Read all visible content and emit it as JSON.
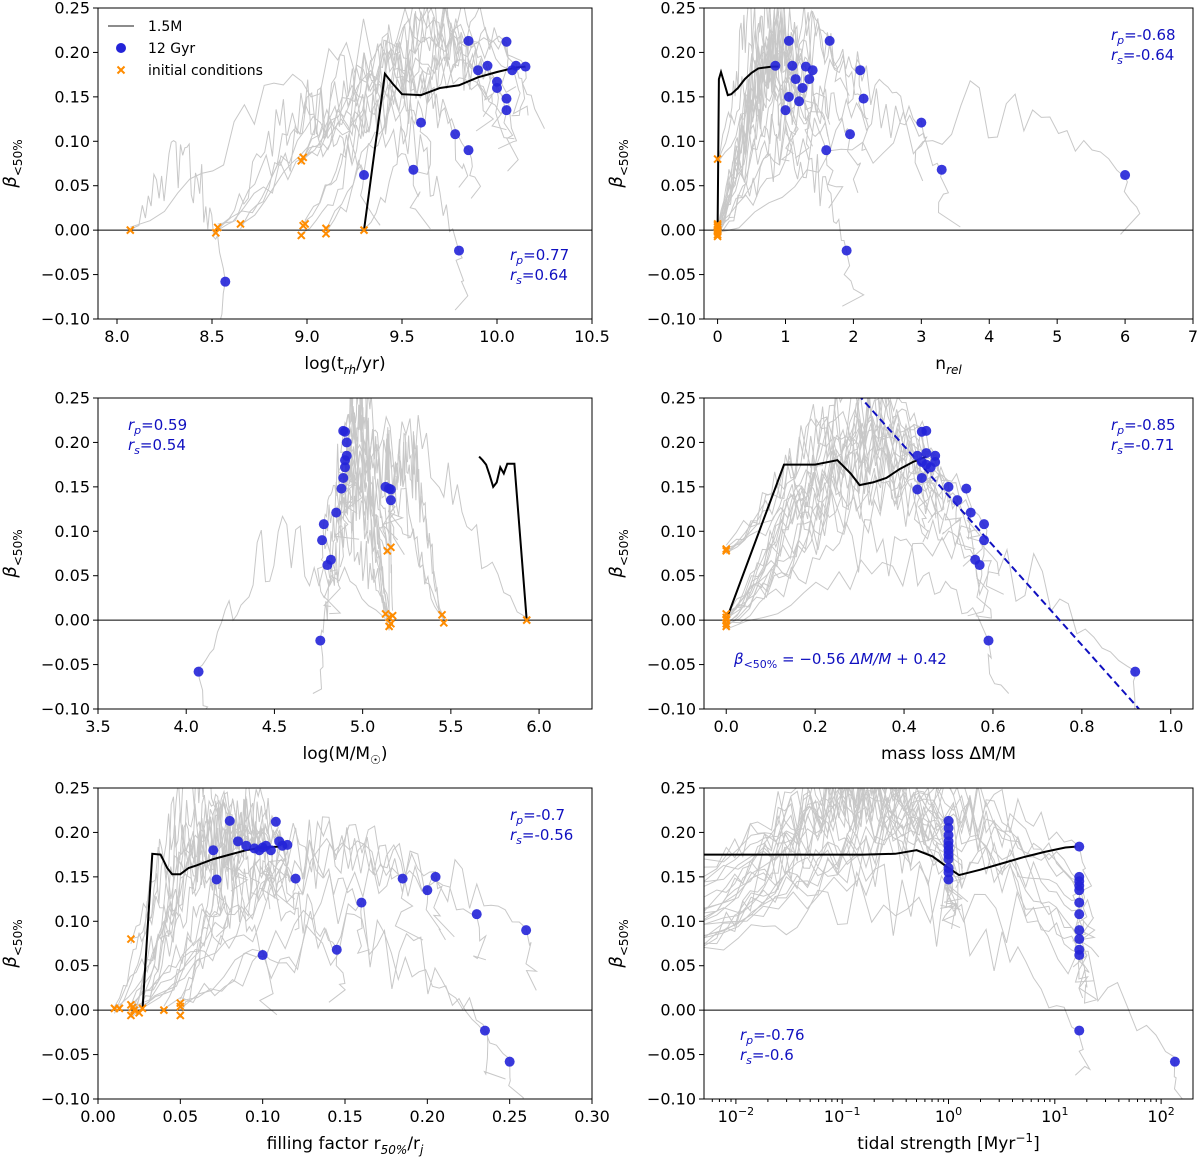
{
  "colors": {
    "track": "#c8c8c8",
    "highlight": "#000000",
    "endpoint": "#2323d8",
    "initial": "#ff8c00",
    "stat": "#1010c0",
    "zero_line": "#000000"
  },
  "legend": {
    "track_label": "1.5M",
    "endpoint_label": "12 Gyr",
    "initial_label": "initial conditions"
  },
  "ylabel": "β<50%",
  "ylabel_parts": {
    "base": "β",
    "sub": "<50%"
  },
  "chart_data": [
    {
      "id": "trh",
      "type": "scatter",
      "xlabel": "log(t_rh/yr)",
      "xlabel_parts": {
        "pre": "log(t",
        "sub": "rh",
        "post": "/yr)"
      },
      "ylabel": "β<50%",
      "xlim": [
        7.9,
        10.5
      ],
      "ylim": [
        -0.1,
        0.25
      ],
      "xscale": "linear",
      "xticks": [
        "8.0",
        "8.5",
        "9.0",
        "9.5",
        "10.0",
        "10.5"
      ],
      "xtick_values": [
        8.0,
        8.5,
        9.0,
        9.5,
        10.0,
        10.5
      ],
      "yticks": [
        "−0.10",
        "−0.05",
        "0.00",
        "0.05",
        "0.10",
        "0.15",
        "0.20",
        "0.25"
      ],
      "stats": {
        "rp": "0.77",
        "rs": "0.64",
        "position": "bottom-right"
      },
      "highlight_track": {
        "name": "1.5M",
        "x": [
          9.3,
          9.41,
          9.45,
          9.5,
          9.6,
          9.7,
          9.8,
          9.9,
          10.0,
          10.1,
          10.15
        ],
        "y": [
          0.0,
          0.176,
          0.165,
          0.153,
          0.152,
          0.16,
          0.163,
          0.172,
          0.178,
          0.183,
          0.184
        ]
      },
      "endpoints": {
        "x": [
          8.57,
          9.3,
          9.56,
          9.6,
          9.78,
          9.8,
          9.85,
          9.85,
          9.9,
          9.95,
          10.0,
          10.0,
          10.05,
          10.05,
          10.05,
          10.08,
          10.1,
          10.15
        ],
        "y": [
          -0.058,
          0.062,
          0.068,
          0.121,
          0.108,
          -0.023,
          0.213,
          0.09,
          0.18,
          0.185,
          0.167,
          0.16,
          0.212,
          0.148,
          0.135,
          0.18,
          0.185,
          0.184
        ]
      },
      "initial": {
        "x": [
          8.07,
          8.52,
          8.53,
          8.65,
          8.97,
          8.98,
          8.99,
          8.97,
          8.98,
          9.1,
          9.1,
          9.3
        ],
        "y": [
          0.0,
          -0.003,
          0.003,
          0.007,
          0.078,
          0.082,
          0.007,
          -0.006,
          0.005,
          -0.004,
          0.002,
          0.0
        ]
      }
    },
    {
      "id": "nrel",
      "type": "scatter",
      "xlabel": "n_rel",
      "xlabel_parts": {
        "pre": "n",
        "sub": "rel",
        "post": ""
      },
      "ylabel": "β<50%",
      "xlim": [
        -0.2,
        7.0
      ],
      "ylim": [
        -0.1,
        0.25
      ],
      "xscale": "linear",
      "xticks": [
        "0",
        "1",
        "2",
        "3",
        "4",
        "5",
        "6",
        "7"
      ],
      "xtick_values": [
        0,
        1,
        2,
        3,
        4,
        5,
        6,
        7
      ],
      "yticks": [
        "−0.10",
        "−0.05",
        "0.00",
        "0.05",
        "0.10",
        "0.15",
        "0.20",
        "0.25"
      ],
      "stats": {
        "rp": "-0.68",
        "rs": "-0.64",
        "position": "top-right"
      },
      "highlight_track": {
        "name": "1.5M",
        "x": [
          0.0,
          0.02,
          0.05,
          0.1,
          0.15,
          0.2,
          0.3,
          0.4,
          0.5,
          0.6,
          0.7,
          0.8,
          0.9
        ],
        "y": [
          0.0,
          0.17,
          0.178,
          0.165,
          0.152,
          0.153,
          0.16,
          0.17,
          0.177,
          0.182,
          0.183,
          0.184,
          0.184
        ]
      },
      "endpoints": {
        "x": [
          0.85,
          1.0,
          1.05,
          1.05,
          1.1,
          1.15,
          1.2,
          1.25,
          1.3,
          1.35,
          1.4,
          1.65,
          1.6,
          1.9,
          1.95,
          2.1,
          2.15,
          3.0,
          3.3,
          6.0
        ],
        "y": [
          0.185,
          0.135,
          0.213,
          0.15,
          0.185,
          0.17,
          0.145,
          0.16,
          0.184,
          0.17,
          0.18,
          0.213,
          0.09,
          -0.023,
          0.108,
          0.18,
          0.148,
          0.121,
          0.068,
          0.062
        ]
      },
      "initial": {
        "x": [
          0.0,
          0.0,
          0.0,
          0.0,
          0.0,
          0.0,
          0.0,
          0.0
        ],
        "y": [
          0.08,
          0.007,
          0.003,
          0.0,
          -0.002,
          -0.005,
          -0.007,
          0.005
        ]
      }
    },
    {
      "id": "mass",
      "type": "scatter",
      "xlabel": "log(M/M☉)",
      "xlabel_parts": {
        "pre": "log(M/M",
        "sub": "☉",
        "post": ")"
      },
      "ylabel": "β<50%",
      "xlim": [
        3.5,
        6.3
      ],
      "ylim": [
        -0.1,
        0.25
      ],
      "xscale": "linear",
      "xticks": [
        "3.5",
        "4.0",
        "4.5",
        "5.0",
        "5.5",
        "6.0"
      ],
      "xtick_values": [
        3.5,
        4.0,
        4.5,
        5.0,
        5.5,
        6.0
      ],
      "yticks": [
        "−0.10",
        "−0.05",
        "0.00",
        "0.05",
        "0.10",
        "0.15",
        "0.20",
        "0.25"
      ],
      "stats": {
        "rp": "0.59",
        "rs": "0.54",
        "position": "top-left"
      },
      "highlight_track": {
        "name": "1.5M",
        "x": [
          5.93,
          5.86,
          5.82,
          5.8,
          5.78,
          5.76,
          5.74,
          5.72,
          5.7,
          5.68,
          5.66
        ],
        "y": [
          0.0,
          0.176,
          0.176,
          0.165,
          0.172,
          0.155,
          0.15,
          0.163,
          0.175,
          0.18,
          0.184
        ]
      },
      "endpoints": {
        "x": [
          4.07,
          4.76,
          4.77,
          4.78,
          4.8,
          4.82,
          4.85,
          4.88,
          4.89,
          4.9,
          4.9,
          4.91,
          4.91,
          4.9,
          4.89,
          5.13,
          5.15,
          5.16,
          5.16
        ],
        "y": [
          -0.058,
          -0.023,
          0.09,
          0.108,
          0.062,
          0.068,
          0.121,
          0.148,
          0.16,
          0.172,
          0.18,
          0.185,
          0.2,
          0.212,
          0.213,
          0.15,
          0.148,
          0.135,
          0.147
        ]
      },
      "initial": {
        "x": [
          5.13,
          5.15,
          5.16,
          5.16,
          5.14,
          5.17,
          5.15,
          5.45,
          5.46,
          5.93
        ],
        "y": [
          0.007,
          0.003,
          -0.004,
          0.082,
          0.078,
          0.005,
          -0.007,
          0.006,
          -0.003,
          0.0
        ]
      }
    },
    {
      "id": "massloss",
      "type": "scatter",
      "xlabel": "mass loss ΔM/M",
      "xlabel_parts": {
        "pre": "mass loss ΔM/M",
        "sub": "",
        "post": ""
      },
      "ylabel": "β<50%",
      "xlim": [
        -0.05,
        1.05
      ],
      "ylim": [
        -0.1,
        0.25
      ],
      "xscale": "linear",
      "xticks": [
        "0.0",
        "0.2",
        "0.4",
        "0.6",
        "0.8",
        "1.0"
      ],
      "xtick_values": [
        0.0,
        0.2,
        0.4,
        0.6,
        0.8,
        1.0
      ],
      "yticks": [
        "−0.10",
        "−0.05",
        "0.00",
        "0.05",
        "0.10",
        "0.15",
        "0.20",
        "0.25"
      ],
      "stats": {
        "rp": "-0.85",
        "rs": "-0.71",
        "position": "top-right"
      },
      "fit_line": {
        "slope": -0.56,
        "intercept": 0.42,
        "label": "β<50% = −0.56 ΔM/M + 0.42"
      },
      "highlight_track": {
        "name": "1.5M",
        "x": [
          0.0,
          0.13,
          0.2,
          0.25,
          0.28,
          0.3,
          0.33,
          0.36,
          0.39,
          0.42,
          0.44,
          0.45
        ],
        "y": [
          0.0,
          0.175,
          0.175,
          0.18,
          0.165,
          0.152,
          0.155,
          0.16,
          0.17,
          0.178,
          0.182,
          0.184
        ]
      },
      "endpoints": {
        "x": [
          0.43,
          0.44,
          0.44,
          0.45,
          0.45,
          0.45,
          0.46,
          0.47,
          0.47,
          0.43,
          0.44,
          0.5,
          0.52,
          0.54,
          0.55,
          0.56,
          0.58,
          0.57,
          0.58,
          0.59,
          0.92
        ],
        "y": [
          0.185,
          0.178,
          0.212,
          0.213,
          0.188,
          0.175,
          0.172,
          0.185,
          0.178,
          0.147,
          0.16,
          0.15,
          0.135,
          0.148,
          0.121,
          0.068,
          0.108,
          0.062,
          0.09,
          -0.023,
          -0.058
        ]
      },
      "initial": {
        "x": [
          0.0,
          0.0,
          0.0,
          0.0,
          0.0,
          0.0,
          0.0
        ],
        "y": [
          0.08,
          0.078,
          0.007,
          0.003,
          0.0,
          -0.004,
          -0.007
        ]
      }
    },
    {
      "id": "filling",
      "type": "scatter",
      "xlabel": "filling factor r_50%/r_j",
      "xlabel_parts": {
        "pre": "filling factor r",
        "sub": "50%",
        "mid": "/r",
        "sub2": "j",
        "post": ""
      },
      "ylabel": "β<50%",
      "xlim": [
        0.0,
        0.3
      ],
      "ylim": [
        -0.1,
        0.25
      ],
      "xscale": "linear",
      "xticks": [
        "0.00",
        "0.05",
        "0.10",
        "0.15",
        "0.20",
        "0.25",
        "0.30"
      ],
      "xtick_values": [
        0.0,
        0.05,
        0.1,
        0.15,
        0.2,
        0.25,
        0.3
      ],
      "yticks": [
        "−0.10",
        "−0.05",
        "0.00",
        "0.05",
        "0.10",
        "0.15",
        "0.20",
        "0.25"
      ],
      "stats": {
        "rp": "-0.7",
        "rs": "-0.56",
        "position": "top-right"
      },
      "highlight_track": {
        "name": "1.5M",
        "x": [
          0.027,
          0.033,
          0.038,
          0.042,
          0.045,
          0.05,
          0.055,
          0.06,
          0.07,
          0.08,
          0.09,
          0.1,
          0.11
        ],
        "y": [
          0.0,
          0.176,
          0.175,
          0.16,
          0.153,
          0.153,
          0.16,
          0.163,
          0.17,
          0.175,
          0.18,
          0.183,
          0.184
        ]
      },
      "endpoints": {
        "x": [
          0.07,
          0.072,
          0.08,
          0.085,
          0.09,
          0.095,
          0.098,
          0.1,
          0.102,
          0.105,
          0.108,
          0.11,
          0.112,
          0.115,
          0.12,
          0.1,
          0.145,
          0.16,
          0.185,
          0.2,
          0.205,
          0.23,
          0.235,
          0.25,
          0.26
        ],
        "y": [
          0.18,
          0.147,
          0.213,
          0.19,
          0.185,
          0.182,
          0.18,
          0.183,
          0.185,
          0.18,
          0.212,
          0.19,
          0.185,
          0.186,
          0.148,
          0.062,
          0.068,
          0.121,
          0.148,
          0.135,
          0.15,
          0.108,
          -0.023,
          -0.058,
          0.09
        ]
      },
      "initial": {
        "x": [
          0.01,
          0.013,
          0.02,
          0.02,
          0.021,
          0.02,
          0.022,
          0.025,
          0.027,
          0.04,
          0.05,
          0.05,
          0.05
        ],
        "y": [
          0.002,
          0.002,
          0.08,
          0.006,
          0.003,
          -0.006,
          0.0,
          -0.003,
          0.002,
          0.0,
          0.008,
          0.004,
          -0.006
        ]
      }
    },
    {
      "id": "tidal",
      "type": "scatter",
      "xlabel": "tidal strength [Myr⁻¹]",
      "xlabel_parts": {
        "pre": "tidal strength [Myr",
        "sup": "−1",
        "post": "]"
      },
      "ylabel": "β<50%",
      "xlim": [
        -2.3,
        2.3
      ],
      "ylim": [
        -0.1,
        0.25
      ],
      "xscale": "log",
      "xticks": [
        "10",
        "10",
        "10",
        "10",
        "10"
      ],
      "xtick_exponents": [
        "−2",
        "−1",
        "0",
        "1",
        "2"
      ],
      "xtick_values": [
        -2,
        -1,
        0,
        1,
        2
      ],
      "yticks": [
        "−0.10",
        "−0.05",
        "0.00",
        "0.05",
        "0.10",
        "0.15",
        "0.20",
        "0.25"
      ],
      "stats": {
        "rp": "-0.76",
        "rs": "-0.6",
        "position": "bottom-left"
      },
      "highlight_track": {
        "name": "1.5M",
        "x": [
          -2.3,
          -1.5,
          -0.8,
          -0.5,
          -0.3,
          -0.15,
          0.0,
          0.1,
          0.3,
          0.5,
          0.7,
          0.9,
          1.1,
          1.2
        ],
        "y": [
          0.175,
          0.175,
          0.175,
          0.176,
          0.18,
          0.173,
          0.16,
          0.152,
          0.158,
          0.165,
          0.172,
          0.178,
          0.183,
          0.184
        ]
      },
      "endpoints": {
        "x": [
          0.0,
          0.0,
          0.0,
          0.0,
          0.0,
          0.0,
          0.0,
          0.0,
          0.0,
          0.0,
          0.0,
          1.23,
          1.23,
          1.23,
          1.23,
          1.23,
          1.23,
          1.23,
          1.23,
          1.23,
          1.23,
          1.23,
          1.23,
          2.13
        ],
        "y": [
          0.213,
          0.205,
          0.197,
          0.19,
          0.185,
          0.18,
          0.175,
          0.17,
          0.16,
          0.155,
          0.147,
          0.184,
          0.15,
          0.145,
          0.14,
          0.135,
          0.121,
          0.108,
          0.09,
          0.068,
          0.062,
          0.08,
          -0.023,
          -0.058
        ]
      },
      "initial": {
        "x": [],
        "y": []
      }
    }
  ]
}
